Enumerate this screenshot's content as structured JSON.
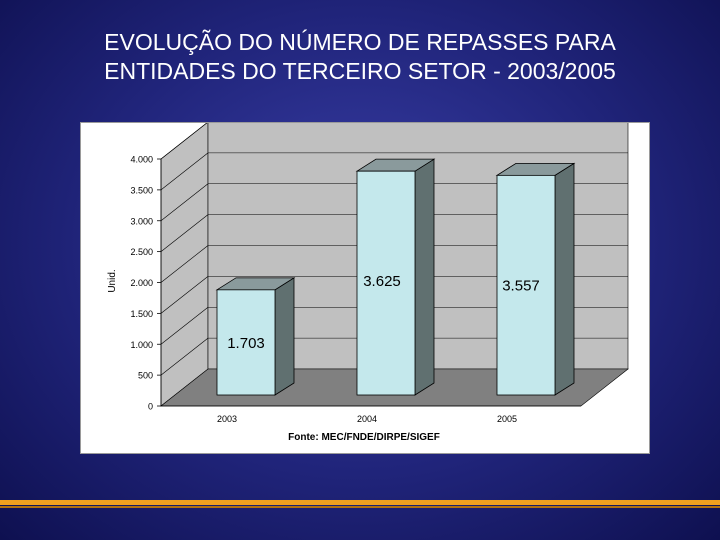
{
  "slide": {
    "title_line1": "EVOLUÇÃO DO NÚMERO DE REPASSES  PARA",
    "title_line2": "ENTIDADES DO TERCEIRO SETOR - 2003/2005"
  },
  "colors": {
    "background": "#20247a",
    "bar_face": "#c4e8ec",
    "bar_side": "#607070",
    "bar_top": "#8a9a9c",
    "wall": "#c0c0c0",
    "floor": "#808080",
    "accent_line": "#f0a020"
  },
  "chart_data": {
    "type": "bar",
    "categories": [
      "2003",
      "2004",
      "2005"
    ],
    "values": [
      1703,
      3625,
      3557
    ],
    "data_labels": [
      "1.703",
      "3.625",
      "3.557"
    ],
    "ylabel": "Unid.",
    "xlabel": "",
    "ylim": [
      0,
      4000
    ],
    "yticks": [
      0,
      500,
      1000,
      1500,
      2000,
      2500,
      3000,
      3500,
      4000
    ],
    "ytick_labels": [
      "0",
      "500",
      "1.000",
      "1.500",
      "2.000",
      "2.500",
      "3.000",
      "3.500",
      "4.000"
    ],
    "source": "Fonte: MEC/FNDE/DIRPE/SIGEF",
    "grid": true,
    "legend": false,
    "style": "3d"
  }
}
